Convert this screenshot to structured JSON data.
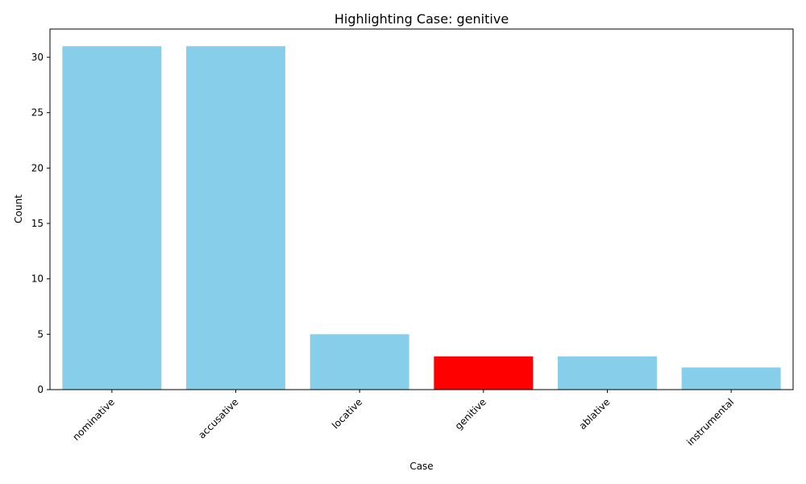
{
  "chart_data": {
    "type": "bar",
    "title": "Highlighting Case: genitive",
    "xlabel": "Case",
    "ylabel": "Count",
    "categories": [
      "nominative",
      "accusative",
      "locative",
      "genitive",
      "ablative",
      "instrumental"
    ],
    "values": [
      31,
      31,
      5,
      3,
      3,
      2
    ],
    "highlighted": "genitive",
    "colors": {
      "bar": "#87ceeb",
      "highlight": "#ff0000"
    },
    "ylim": [
      0,
      32.55
    ],
    "yticks": [
      0,
      5,
      10,
      15,
      20,
      25,
      30
    ],
    "grid": false,
    "legend": "none"
  }
}
